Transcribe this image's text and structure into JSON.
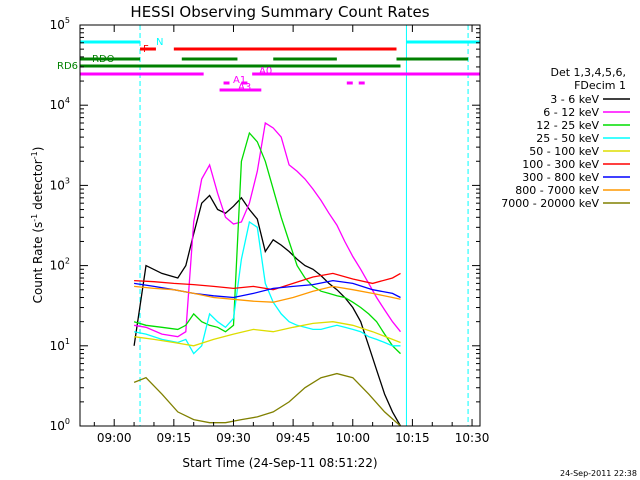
{
  "chart_data": {
    "type": "line",
    "title": "HESSI Observing Summary Count Rates",
    "xlabel": "Start Time (24-Sep-11 08:51:22)",
    "ylabel_main": "Count Rate (s",
    "ylabel_sup": "-1",
    "ylabel_end": " detector",
    "ylabel_close": ")",
    "x_ticks": [
      "09:00",
      "09:15",
      "09:30",
      "09:45",
      "10:00",
      "10:15",
      "10:30"
    ],
    "x_tick_minutes": [
      0,
      15,
      30,
      45,
      60,
      75,
      90
    ],
    "x_range_minutes": [
      -8.6,
      92
    ],
    "y_log": true,
    "ylim": [
      1,
      100000
    ],
    "y_ticks": [
      {
        "base": "10",
        "exp": "0",
        "value": 1
      },
      {
        "base": "10",
        "exp": "1",
        "value": 10
      },
      {
        "base": "10",
        "exp": "2",
        "value": 100
      },
      {
        "base": "10",
        "exp": "3",
        "value": 1000
      },
      {
        "base": "10",
        "exp": "4",
        "value": 10000
      },
      {
        "base": "10",
        "exp": "5",
        "value": 100000
      }
    ],
    "legend_header": [
      "Det 1,3,4,5,6,",
      "FDecim 1"
    ],
    "legend_position": "right",
    "series": [
      {
        "name": "3 - 6 keV",
        "color": "#000000",
        "x": [
          5,
          8,
          12,
          16,
          18,
          20,
          22,
          24,
          26,
          28,
          30,
          32,
          34,
          36,
          38,
          40,
          42,
          44,
          46,
          48,
          50,
          52,
          54,
          56,
          58,
          60,
          62,
          64,
          66,
          68,
          70,
          72
        ],
        "y": [
          10,
          100,
          80,
          70,
          100,
          250,
          600,
          750,
          500,
          450,
          550,
          700,
          500,
          380,
          150,
          210,
          180,
          150,
          120,
          100,
          90,
          75,
          60,
          50,
          40,
          30,
          20,
          10,
          5,
          2.5,
          1.5,
          1
        ]
      },
      {
        "name": "6 - 12 keV",
        "color": "#ff00ff",
        "x": [
          5,
          8,
          12,
          16,
          18,
          20,
          22,
          24,
          26,
          28,
          30,
          32,
          34,
          36,
          37,
          38,
          40,
          42,
          44,
          46,
          48,
          50,
          52,
          54,
          56,
          58,
          60,
          62,
          64,
          66,
          68,
          70,
          72
        ],
        "y": [
          18,
          17,
          14,
          13,
          15,
          350,
          1200,
          1800,
          800,
          400,
          330,
          350,
          600,
          1500,
          3000,
          6000,
          5200,
          4000,
          1800,
          1500,
          1200,
          900,
          650,
          450,
          320,
          200,
          130,
          90,
          60,
          40,
          28,
          20,
          15
        ]
      },
      {
        "name": "12 - 25 keV",
        "color": "#00dd00",
        "x": [
          5,
          8,
          12,
          16,
          18,
          20,
          22,
          24,
          26,
          28,
          30,
          32,
          34,
          36,
          38,
          40,
          42,
          44,
          46,
          48,
          50,
          52,
          54,
          56,
          58,
          60,
          62,
          64,
          66,
          68,
          70,
          72
        ],
        "y": [
          20,
          18,
          17,
          16,
          18,
          25,
          20,
          18,
          17,
          15,
          18,
          2000,
          4500,
          3500,
          2000,
          900,
          400,
          200,
          100,
          70,
          55,
          48,
          45,
          42,
          40,
          35,
          30,
          25,
          20,
          14,
          10,
          8
        ]
      },
      {
        "name": "25 - 50 keV",
        "color": "#00ffff",
        "x": [
          5,
          8,
          12,
          16,
          18,
          20,
          22,
          24,
          26,
          28,
          30,
          32,
          34,
          36,
          38,
          40,
          42,
          44,
          46,
          48,
          50,
          52,
          54,
          56,
          58,
          60,
          62,
          64,
          66,
          68,
          70,
          72
        ],
        "y": [
          15,
          14,
          12,
          11,
          12,
          8,
          10,
          25,
          20,
          17,
          22,
          120,
          350,
          300,
          60,
          35,
          25,
          20,
          18,
          17,
          16,
          16,
          17,
          18,
          17,
          16,
          15,
          13,
          12,
          11,
          10,
          10
        ]
      },
      {
        "name": "50 - 100 keV",
        "color": "#dddd00",
        "x": [
          5,
          10,
          15,
          20,
          25,
          30,
          35,
          40,
          45,
          50,
          55,
          60,
          65,
          70,
          72
        ],
        "y": [
          13,
          12,
          11,
          10,
          12,
          14,
          16,
          15,
          17,
          19,
          20,
          18,
          15,
          12,
          11
        ]
      },
      {
        "name": "100 - 300 keV",
        "color": "#ff0000",
        "x": [
          5,
          10,
          15,
          20,
          25,
          30,
          35,
          40,
          45,
          50,
          55,
          60,
          65,
          70,
          72
        ],
        "y": [
          65,
          63,
          60,
          58,
          55,
          52,
          55,
          50,
          60,
          72,
          80,
          68,
          60,
          70,
          80
        ]
      },
      {
        "name": "300 - 800 keV",
        "color": "#0000ff",
        "x": [
          5,
          10,
          15,
          20,
          25,
          30,
          35,
          40,
          45,
          50,
          55,
          60,
          65,
          70,
          72
        ],
        "y": [
          60,
          55,
          50,
          45,
          42,
          40,
          45,
          52,
          55,
          58,
          65,
          60,
          50,
          45,
          40
        ]
      },
      {
        "name": "800 - 7000 keV",
        "color": "#ff9900",
        "x": [
          5,
          10,
          15,
          20,
          25,
          30,
          35,
          40,
          45,
          50,
          55,
          60,
          65,
          70,
          72
        ],
        "y": [
          55,
          52,
          50,
          45,
          40,
          38,
          36,
          35,
          40,
          48,
          55,
          50,
          45,
          40,
          38
        ]
      },
      {
        "name": "7000 - 20000 keV",
        "color": "#808000",
        "x": [
          5,
          8,
          12,
          16,
          20,
          24,
          28,
          32,
          36,
          40,
          44,
          48,
          52,
          56,
          60,
          64,
          68,
          72
        ],
        "y": [
          3.5,
          4,
          2.5,
          1.5,
          1.2,
          1.1,
          1.1,
          1.2,
          1.3,
          1.5,
          2,
          3,
          4,
          4.5,
          4,
          2.5,
          1.5,
          1
        ]
      }
    ],
    "flag_bars": [
      {
        "label": "N",
        "color": "#00ffff",
        "segments": [
          [
            -8.6,
            6.5
          ],
          [
            73.5,
            92
          ]
        ]
      },
      {
        "label": "F",
        "color": "#ff0000",
        "segments": [
          [
            6.5,
            10.5
          ],
          [
            15,
            71
          ]
        ]
      },
      {
        "label": "RDO",
        "color": "#008000",
        "segments": [
          [
            -8.6,
            6.5
          ],
          [
            17,
            31
          ],
          [
            40,
            56
          ],
          [
            71,
            89
          ]
        ]
      },
      {
        "label": "RD6",
        "color": "#008000",
        "segments": [
          [
            -8.6,
            72
          ]
        ]
      },
      {
        "label": "A0",
        "color": "#ff00ff",
        "segments": [
          [
            -8.6,
            22.5
          ],
          [
            34.7,
            94
          ]
        ]
      },
      {
        "label": "A1",
        "color": "#ff00ff",
        "segments": [
          [
            27.5,
            29
          ],
          [
            32,
            33.5
          ],
          [
            58.5,
            60
          ],
          [
            61.5,
            63
          ]
        ]
      },
      {
        "label": "A3",
        "color": "#ff00ff",
        "segments": [
          [
            26.5,
            37
          ]
        ]
      }
    ],
    "vertical_markers": [
      {
        "color": "#00ffff",
        "minutes": 6.5,
        "style": "dashed"
      },
      {
        "color": "#00ffff",
        "minutes": 73.5,
        "style": "solid"
      },
      {
        "color": "#00ffff",
        "minutes": 89,
        "style": "dashed"
      }
    ]
  },
  "timestamp": "24-Sep-2011 22:38"
}
